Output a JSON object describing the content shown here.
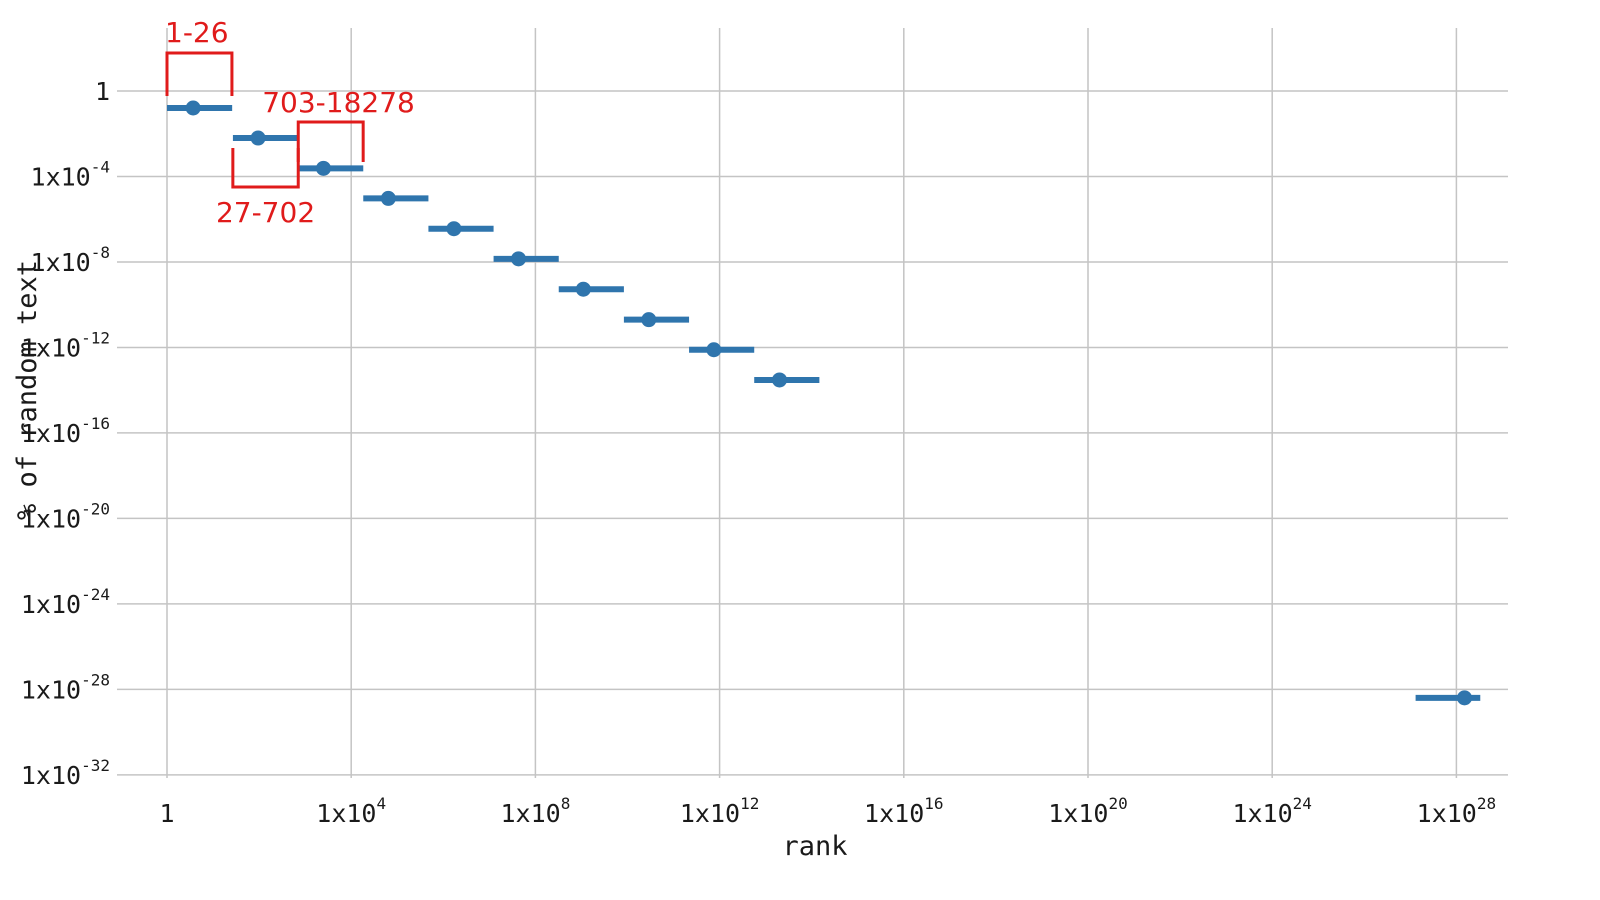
{
  "chart_data": {
    "type": "scatter",
    "xlabel": "rank",
    "ylabel": "% of random text",
    "x_scale": "log",
    "y_scale": "log",
    "xlim": [
      "1",
      "1x10^29"
    ],
    "ylim": [
      "1x10^-32",
      "1x10^4"
    ],
    "grid": true,
    "x_ticks": [
      {
        "base": "1",
        "exp": ""
      },
      {
        "base": "1x10",
        "exp": "4"
      },
      {
        "base": "1x10",
        "exp": "8"
      },
      {
        "base": "1x10",
        "exp": "12"
      },
      {
        "base": "1x10",
        "exp": "16"
      },
      {
        "base": "1x10",
        "exp": "20"
      },
      {
        "base": "1x10",
        "exp": "24"
      },
      {
        "base": "1x10",
        "exp": "28"
      }
    ],
    "y_ticks": [
      {
        "base": "1",
        "exp": ""
      },
      {
        "base": "1x10",
        "exp": "-4"
      },
      {
        "base": "1x10",
        "exp": "-8"
      },
      {
        "base": "1x10",
        "exp": "-12"
      },
      {
        "base": "1x10",
        "exp": "-16"
      },
      {
        "base": "1x10",
        "exp": "-20"
      },
      {
        "base": "1x10",
        "exp": "-24"
      },
      {
        "base": "1x10",
        "exp": "-28"
      },
      {
        "base": "1x10",
        "exp": "-32"
      }
    ],
    "series_color": "#2f75ad",
    "points": [
      {
        "rank_from": "1",
        "rank_to": "26",
        "rank": "3.7",
        "percent": "0.16"
      },
      {
        "rank_from": "27",
        "rank_to": "702",
        "rank": "95",
        "percent": "0.0063"
      },
      {
        "rank_from": "703",
        "rank_to": "18278",
        "rank": "2500",
        "percent": "0.00024"
      },
      {
        "rank_from": "18279",
        "rank_to": "475254",
        "rank": "64000",
        "percent": "9.4e-6"
      },
      {
        "rank_from": "475255",
        "rank_to": "12356630",
        "rank": "1.7e6",
        "percent": "3.6e-7"
      },
      {
        "rank_from": "12356631",
        "rank_to": "321272406",
        "rank": "4.3e7",
        "percent": "1.4e-8"
      },
      {
        "rank_from": "321272407",
        "rank_to": "8353082582",
        "rank": "1.1e9",
        "percent": "5.3e-10"
      },
      {
        "rank_from": "8353082583",
        "rank_to": "217180147158",
        "rank": "2.9e10",
        "percent": "2.0e-11"
      },
      {
        "rank_from": "217180147159",
        "rank_to": "5646683826134",
        "rank": "7.5e11",
        "percent": "7.8e-13"
      },
      {
        "rank_from": "5646683826135",
        "rank_to": "146813779479510",
        "rank": "2.0e13",
        "percent": "3.0e-14"
      },
      {
        "rank_from": "1.3e27",
        "rank_to": "3.3e28",
        "rank": "1.5e28",
        "percent": "4.0e-29"
      }
    ],
    "annotations": [
      {
        "text": "1-26",
        "range": [
          0,
          1.41
        ]
      },
      {
        "text": "27-702",
        "range": [
          1.43,
          2.85
        ]
      },
      {
        "text": "703-18278",
        "range": [
          2.85,
          4.26
        ]
      }
    ],
    "annotation_color": "#e01b1b"
  }
}
